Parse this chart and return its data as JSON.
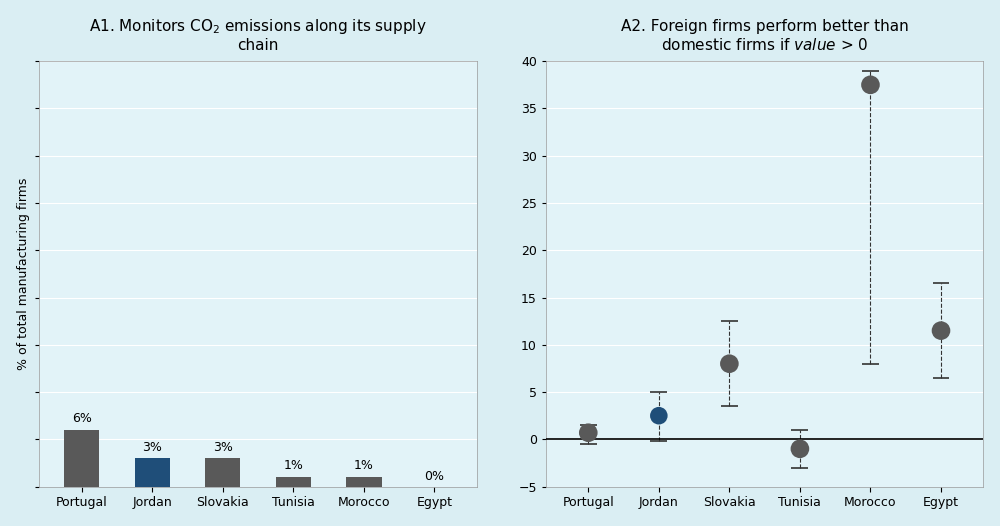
{
  "title1": "A1. Monitors CO$_2$ emissions along its supply\nchain",
  "title2": "A2. Foreign firms perform better than\ndomestic firms if $\\mathit{value}$ > 0",
  "countries": [
    "Portugal",
    "Jordan",
    "Slovakia",
    "Tunisia",
    "Morocco",
    "Egypt"
  ],
  "bar_values": [
    6,
    3,
    3,
    1,
    1,
    0
  ],
  "bar_labels": [
    "6%",
    "3%",
    "3%",
    "1%",
    "1%",
    "0%"
  ],
  "bar_colors": [
    "#595959",
    "#1F4E79",
    "#595959",
    "#595959",
    "#595959",
    "#595959"
  ],
  "dot_values": [
    0.7,
    2.5,
    8.0,
    -1.0,
    37.5,
    11.5
  ],
  "dot_colors": [
    "#595959",
    "#1F4E79",
    "#595959",
    "#595959",
    "#595959",
    "#595959"
  ],
  "dot_ci_low": [
    -0.5,
    -0.2,
    3.5,
    -3.0,
    8.0,
    6.5
  ],
  "dot_ci_high": [
    1.5,
    5.0,
    12.5,
    1.0,
    39.0,
    16.5
  ],
  "ylabel1": "% of total manufacturing firms",
  "ylim1_max": 45,
  "ylim2": [
    -5,
    40
  ],
  "yticks2": [
    -5,
    0,
    5,
    10,
    15,
    20,
    25,
    30,
    35,
    40
  ],
  "bg_color": "#DAEEF3",
  "plot_bg": "#E2F3F8"
}
